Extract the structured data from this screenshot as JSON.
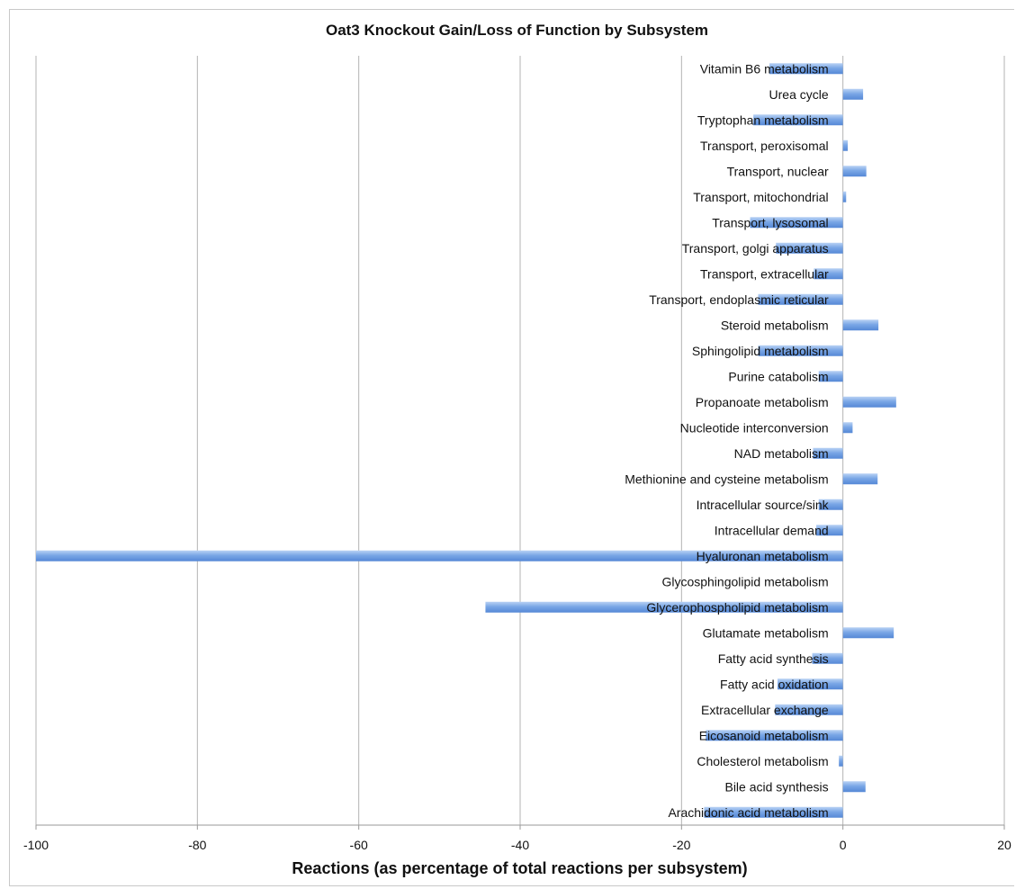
{
  "chart_data": {
    "type": "bar",
    "orientation": "horizontal",
    "title": "Oat3 Knockout Gain/Loss of Function by Subsystem",
    "xlabel": "Reactions (as percentage of total reactions per subsystem)",
    "ylabel": "",
    "xlim": [
      -100,
      20
    ],
    "xticks": [
      -100,
      -80,
      -60,
      -40,
      -20,
      0,
      20
    ],
    "grid": "vertical",
    "bar_color": "#7aa7e6",
    "categories": [
      "Vitamin B6 metabolism",
      "Urea cycle",
      "Tryptophan metabolism",
      "Transport, peroxisomal",
      "Transport, nuclear",
      "Transport, mitochondrial",
      "Transport, lysosomal",
      "Transport, golgi apparatus",
      "Transport, extracellular",
      "Transport, endoplasmic reticular",
      "Steroid metabolism",
      "Sphingolipid metabolism",
      "Purine catabolism",
      "Propanoate metabolism",
      "Nucleotide interconversion",
      "NAD metabolism",
      "Methionine and cysteine metabolism",
      "Intracellular source/sink",
      "Intracellular demand",
      "Hyaluronan metabolism",
      "Glycosphingolipid metabolism",
      "Glycerophospholipid metabolism",
      "Glutamate metabolism",
      "Fatty acid synthesis",
      "Fatty acid oxidation",
      "Extracellular exchange",
      "Eicosanoid metabolism",
      "Cholesterol metabolism",
      "Bile acid synthesis",
      "Arachidonic acid metabolism"
    ],
    "values": [
      -9.1,
      2.5,
      -11.1,
      0.6,
      2.9,
      0.4,
      -11.5,
      -8.3,
      -3.6,
      -10.5,
      4.4,
      -10.5,
      -3.0,
      6.6,
      1.2,
      -3.7,
      4.3,
      -3.0,
      -3.3,
      -100,
      0,
      -44.3,
      6.3,
      -3.8,
      -8.1,
      -8.4,
      -17.0,
      -0.5,
      2.8,
      -17.2
    ]
  }
}
